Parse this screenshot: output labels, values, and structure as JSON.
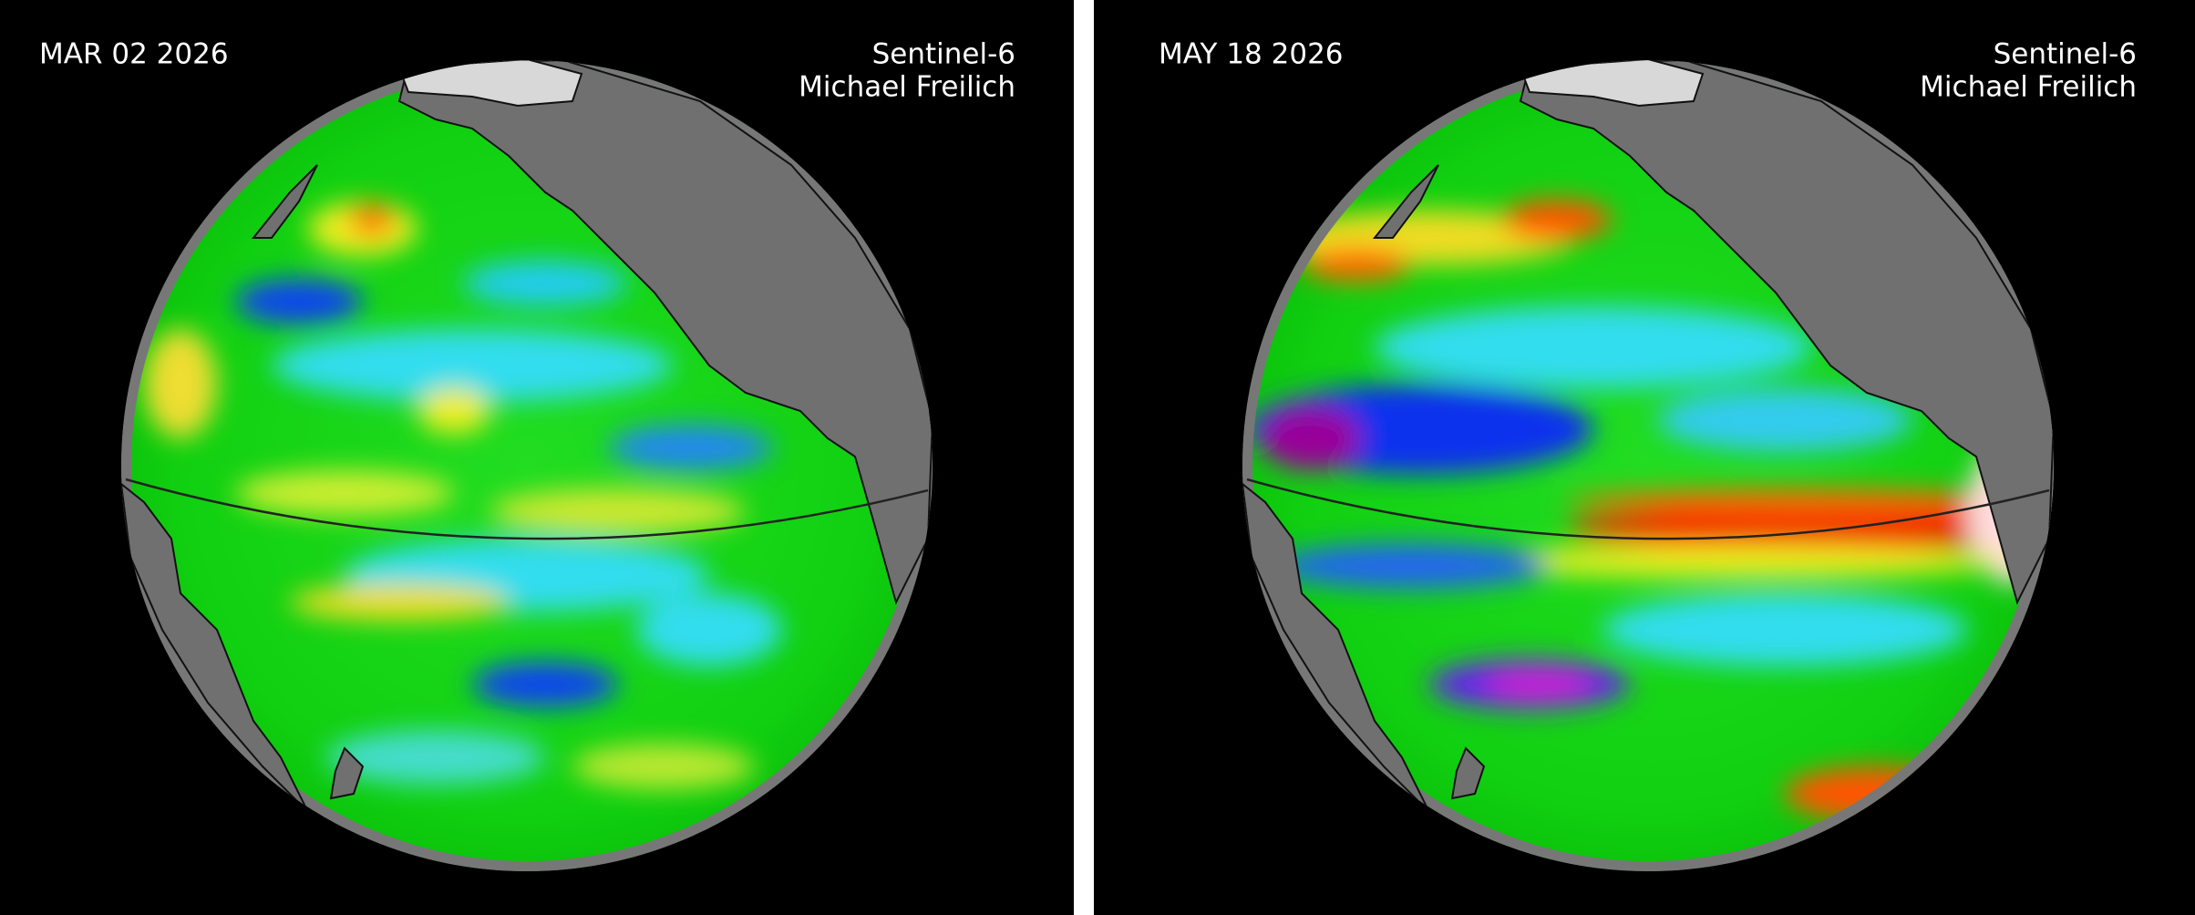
{
  "panels": [
    {
      "date": "MAR 02 2026",
      "satellite": "Sentinel-6",
      "satellite_name": "Michael Freilich"
    },
    {
      "date": "MAY 18 2026",
      "satellite": "Sentinel-6",
      "satellite_name": "Michael Freilich"
    }
  ]
}
